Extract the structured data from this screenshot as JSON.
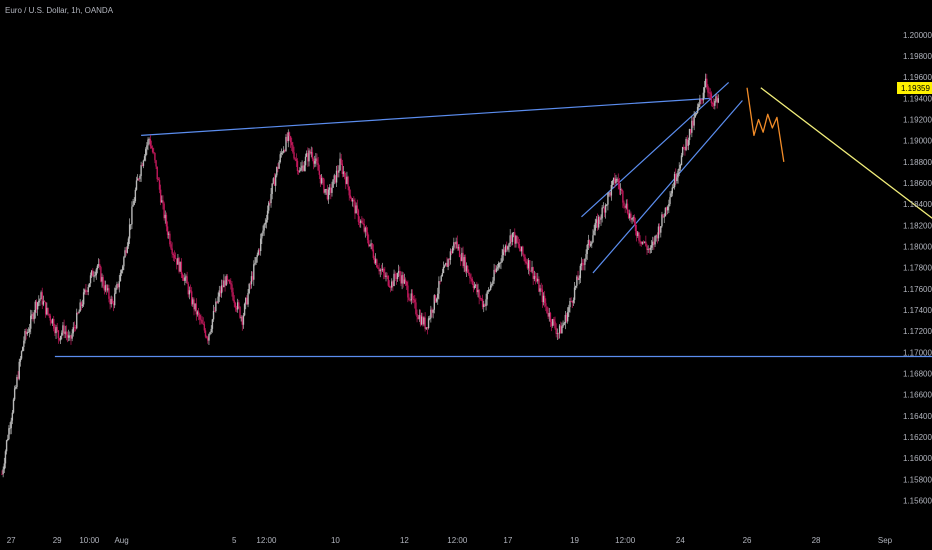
{
  "chart_data": {
    "type": "candlestick",
    "title": "Euro / U.S. Dollar, 1h, OANDA",
    "colors": {
      "background": "#000000",
      "bull": "#b9b9b9",
      "bear": "#c2185b",
      "trendline": "#5b8def",
      "forecast_arrow": "#f2ee7a",
      "projection_scribble": "#f28c28",
      "price_tag": "#fff200",
      "axis_text": "#b2b5be"
    },
    "y_axis": {
      "min": 1.155,
      "max": 1.2015,
      "ticks": [
        "1.15600",
        "1.15800",
        "1.16000",
        "1.16200",
        "1.16400",
        "1.16600",
        "1.16800",
        "1.17000",
        "1.17200",
        "1.17400",
        "1.17600",
        "1.17800",
        "1.18000",
        "1.18200",
        "1.18400",
        "1.18600",
        "1.18800",
        "1.19000",
        "1.19200",
        "1.19400",
        "1.19600",
        "1.19800",
        "1.20000"
      ]
    },
    "x_axis": {
      "min": 0,
      "max": 38.4,
      "ticks": [
        {
          "label": "27",
          "x": 0.4
        },
        {
          "label": "29",
          "x": 2.4
        },
        {
          "label": "10:00",
          "x": 3.8
        },
        {
          "label": "Aug",
          "x": 5.2
        },
        {
          "label": "5",
          "x": 10.1
        },
        {
          "label": "12:00",
          "x": 11.5
        },
        {
          "label": "10",
          "x": 14.5
        },
        {
          "label": "12",
          "x": 17.5
        },
        {
          "label": "12:00",
          "x": 19.8
        },
        {
          "label": "17",
          "x": 22.0
        },
        {
          "label": "19",
          "x": 24.9
        },
        {
          "label": "12:00",
          "x": 27.1
        },
        {
          "label": "24",
          "x": 29.5
        },
        {
          "label": "26",
          "x": 32.4
        },
        {
          "label": "28",
          "x": 35.4
        },
        {
          "label": "Sep",
          "x": 38.4
        }
      ]
    },
    "current_price": "1.19359",
    "price_path": [
      [
        0.0,
        1.1585
      ],
      [
        0.2,
        1.1615
      ],
      [
        0.4,
        1.164
      ],
      [
        0.7,
        1.168
      ],
      [
        0.95,
        1.1712
      ],
      [
        1.2,
        1.1725
      ],
      [
        1.45,
        1.1745
      ],
      [
        1.7,
        1.1752
      ],
      [
        1.95,
        1.1738
      ],
      [
        2.2,
        1.173
      ],
      [
        2.45,
        1.1715
      ],
      [
        2.7,
        1.1722
      ],
      [
        2.95,
        1.171
      ],
      [
        3.2,
        1.1728
      ],
      [
        3.45,
        1.1745
      ],
      [
        3.7,
        1.1762
      ],
      [
        3.95,
        1.1775
      ],
      [
        4.15,
        1.1782
      ],
      [
        4.4,
        1.1765
      ],
      [
        4.6,
        1.1755
      ],
      [
        4.8,
        1.1745
      ],
      [
        5.0,
        1.176
      ],
      [
        5.2,
        1.1778
      ],
      [
        5.4,
        1.18
      ],
      [
        5.6,
        1.1825
      ],
      [
        5.8,
        1.1852
      ],
      [
        6.0,
        1.1872
      ],
      [
        6.2,
        1.189
      ],
      [
        6.4,
        1.1902
      ],
      [
        6.6,
        1.1885
      ],
      [
        6.8,
        1.186
      ],
      [
        7.0,
        1.1835
      ],
      [
        7.2,
        1.1815
      ],
      [
        7.45,
        1.1795
      ],
      [
        7.7,
        1.1782
      ],
      [
        7.95,
        1.177
      ],
      [
        8.2,
        1.1752
      ],
      [
        8.45,
        1.1738
      ],
      [
        8.7,
        1.1725
      ],
      [
        8.95,
        1.1715
      ],
      [
        9.2,
        1.1735
      ],
      [
        9.45,
        1.1755
      ],
      [
        9.7,
        1.1768
      ],
      [
        9.95,
        1.176
      ],
      [
        10.2,
        1.1745
      ],
      [
        10.45,
        1.1732
      ],
      [
        10.7,
        1.1755
      ],
      [
        10.95,
        1.1778
      ],
      [
        11.2,
        1.18
      ],
      [
        11.45,
        1.1825
      ],
      [
        11.7,
        1.185
      ],
      [
        11.95,
        1.1872
      ],
      [
        12.2,
        1.1892
      ],
      [
        12.45,
        1.1902
      ],
      [
        12.7,
        1.1888
      ],
      [
        12.95,
        1.187
      ],
      [
        13.2,
        1.1882
      ],
      [
        13.45,
        1.189
      ],
      [
        13.7,
        1.1875
      ],
      [
        13.95,
        1.1858
      ],
      [
        14.2,
        1.1848
      ],
      [
        14.45,
        1.1862
      ],
      [
        14.7,
        1.1878
      ],
      [
        14.95,
        1.1865
      ],
      [
        15.2,
        1.1845
      ],
      [
        15.45,
        1.183
      ],
      [
        15.7,
        1.1818
      ],
      [
        15.95,
        1.1805
      ],
      [
        16.2,
        1.179
      ],
      [
        16.45,
        1.1778
      ],
      [
        16.7,
        1.177
      ],
      [
        16.95,
        1.1765
      ],
      [
        17.2,
        1.1775
      ],
      [
        17.45,
        1.1768
      ],
      [
        17.7,
        1.1755
      ],
      [
        17.95,
        1.1742
      ],
      [
        18.2,
        1.1732
      ],
      [
        18.45,
        1.1725
      ],
      [
        18.7,
        1.1742
      ],
      [
        18.95,
        1.1758
      ],
      [
        19.2,
        1.1775
      ],
      [
        19.45,
        1.179
      ],
      [
        19.7,
        1.1805
      ],
      [
        19.95,
        1.1792
      ],
      [
        20.2,
        1.178
      ],
      [
        20.45,
        1.1768
      ],
      [
        20.7,
        1.1755
      ],
      [
        20.95,
        1.1745
      ],
      [
        21.2,
        1.176
      ],
      [
        21.45,
        1.1775
      ],
      [
        21.7,
        1.179
      ],
      [
        21.95,
        1.1802
      ],
      [
        22.2,
        1.1812
      ],
      [
        22.45,
        1.18
      ],
      [
        22.7,
        1.179
      ],
      [
        22.95,
        1.1782
      ],
      [
        23.2,
        1.177
      ],
      [
        23.45,
        1.1755
      ],
      [
        23.7,
        1.174
      ],
      [
        23.95,
        1.1728
      ],
      [
        24.2,
        1.1718
      ],
      [
        24.45,
        1.1728
      ],
      [
        24.7,
        1.1745
      ],
      [
        24.95,
        1.1762
      ],
      [
        25.2,
        1.178
      ],
      [
        25.45,
        1.1798
      ],
      [
        25.7,
        1.1812
      ],
      [
        25.95,
        1.1825
      ],
      [
        26.2,
        1.1838
      ],
      [
        26.45,
        1.1852
      ],
      [
        26.7,
        1.1865
      ],
      [
        26.95,
        1.185
      ],
      [
        27.2,
        1.1835
      ],
      [
        27.45,
        1.1822
      ],
      [
        27.7,
        1.181
      ],
      [
        27.95,
        1.1802
      ],
      [
        28.2,
        1.1795
      ],
      [
        28.45,
        1.181
      ],
      [
        28.7,
        1.1825
      ],
      [
        28.95,
        1.1842
      ],
      [
        29.2,
        1.186
      ],
      [
        29.45,
        1.1878
      ],
      [
        29.7,
        1.1895
      ],
      [
        29.95,
        1.191
      ],
      [
        30.2,
        1.1925
      ],
      [
        30.45,
        1.1942
      ],
      [
        30.6,
        1.196
      ],
      [
        30.75,
        1.1945
      ],
      [
        30.9,
        1.193
      ],
      [
        31.05,
        1.1938
      ],
      [
        31.2,
        1.1936
      ]
    ],
    "drawings": {
      "upper_trendline": {
        "x1": 6.05,
        "y1": 1.1905,
        "x2": 30.8,
        "y2": 1.194
      },
      "support_line": {
        "x1": 2.3,
        "y1": 1.1696,
        "x2": 46.7,
        "y2": 1.1696
      },
      "channel_upper": {
        "x1": 25.2,
        "y1": 1.1828,
        "x2": 31.6,
        "y2": 1.1955
      },
      "channel_lower": {
        "x1": 25.7,
        "y1": 1.1775,
        "x2": 32.2,
        "y2": 1.1938
      },
      "projection_zigzag": [
        [
          32.4,
          1.195
        ],
        [
          32.7,
          1.1905
        ],
        [
          32.9,
          1.192
        ],
        [
          33.1,
          1.1908
        ],
        [
          33.3,
          1.1925
        ],
        [
          33.5,
          1.1912
        ],
        [
          33.7,
          1.1922
        ],
        [
          34.0,
          1.188
        ]
      ],
      "forecast_arrow": {
        "x1": 33.0,
        "y1": 1.195,
        "x2": 46.0,
        "y2": 1.1735
      }
    }
  }
}
